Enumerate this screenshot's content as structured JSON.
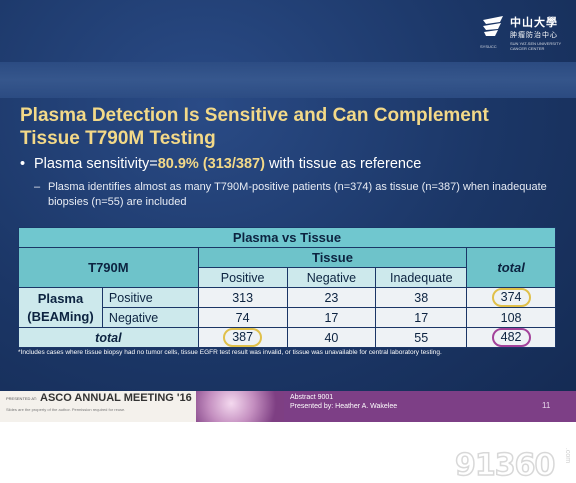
{
  "logo": {
    "cn_name": "中山大學",
    "cn_center": "肿瘤防治中心",
    "en_line": "SUN YAT-SEN UNIVERSITY CANCER CENTER",
    "sub": "SYSUCC"
  },
  "title": {
    "line1": "Plasma Detection Is Sensitive and Can Complement",
    "line2": "Tissue T790M Testing"
  },
  "bullet": {
    "prefix": "Plasma sensitivity=",
    "value": "80.9% (313/387)",
    "suffix": " with tissue as reference"
  },
  "sub_bullet": {
    "text": "Plasma identifies almost as many T790M-positive patients (n=374) as tissue (n=387) when inadequate biopsies (n=55) are included"
  },
  "table": {
    "caption": "Plasma vs Tissue",
    "corner": "T790M",
    "tissue_header": "Tissue",
    "total_header": "total",
    "cols": [
      "Positive",
      "Negative",
      "Inadequate"
    ],
    "row_group": [
      "Plasma",
      "(BEAMing)"
    ],
    "rows": [
      {
        "label": "Positive",
        "values": [
          "313",
          "23",
          "38"
        ],
        "total": "374"
      },
      {
        "label": "Negative",
        "values": [
          "74",
          "17",
          "17"
        ],
        "total": "108"
      }
    ],
    "total_row": {
      "label": "total",
      "values": [
        "387",
        "40",
        "55"
      ],
      "total": "482"
    }
  },
  "footnote": "*Includes cases where tissue biopsy had no tumor cells, tissue EGFR test result was invalid, or tissue was unavailable for central laboratory testing.",
  "footer": {
    "presented_at": "PRESENTED AT:",
    "meeting": "ASCO ANNUAL MEETING '16",
    "permission": "Slides are the property of the author. Permission required for reuse.",
    "abstract": "Abstract 9001",
    "presenter": "Presented by: Heather A. Wakelee",
    "page": "11"
  },
  "watermark": {
    "text": "91360",
    "suffix": ".com"
  },
  "colors": {
    "slide_bg": "#1b3666",
    "title": "#f3d988",
    "table_header": "#70c7cf",
    "circle_yellow": "#e0c04a",
    "circle_purple": "#a3429a",
    "footer_purple": "#7d3f86"
  }
}
